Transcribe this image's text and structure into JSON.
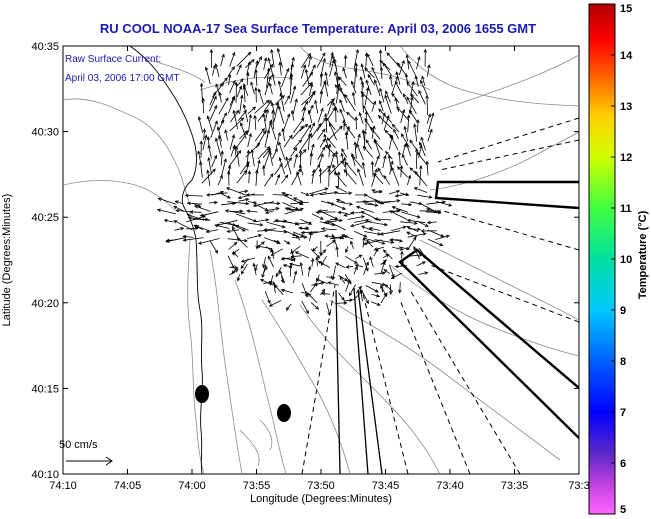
{
  "title": "RU COOL  NOAA-17  Sea Surface Temperature:  April 03, 2006 1655 GMT",
  "annotation": {
    "line1": "Raw Surface Current:",
    "line2": "April 03, 2006 17:00 GMT"
  },
  "scale_label": "50 cm/s",
  "chart_data": {
    "type": "map",
    "xlabel": "Longitude (Degrees:Minutes)",
    "ylabel": "Latitude (Degrees:Minutes)",
    "x_ticks": [
      "74:10",
      "74:05",
      "74:00",
      "73:55",
      "73:50",
      "73:45",
      "73:40",
      "73:35",
      "73:3"
    ],
    "y_ticks": [
      "40:35",
      "40:30",
      "40:25",
      "40:20",
      "40:15",
      "40:10"
    ],
    "colorbar": {
      "label": "Temperature (°C)",
      "ticks": [
        "15",
        "14",
        "13",
        "12",
        "11",
        "10",
        "9",
        "8",
        "7",
        "6",
        "5"
      ],
      "range": [
        5,
        15
      ]
    }
  },
  "colors": {
    "title": "#1a1ab4",
    "contour": "#8c8c8c",
    "vector": "#000000"
  }
}
